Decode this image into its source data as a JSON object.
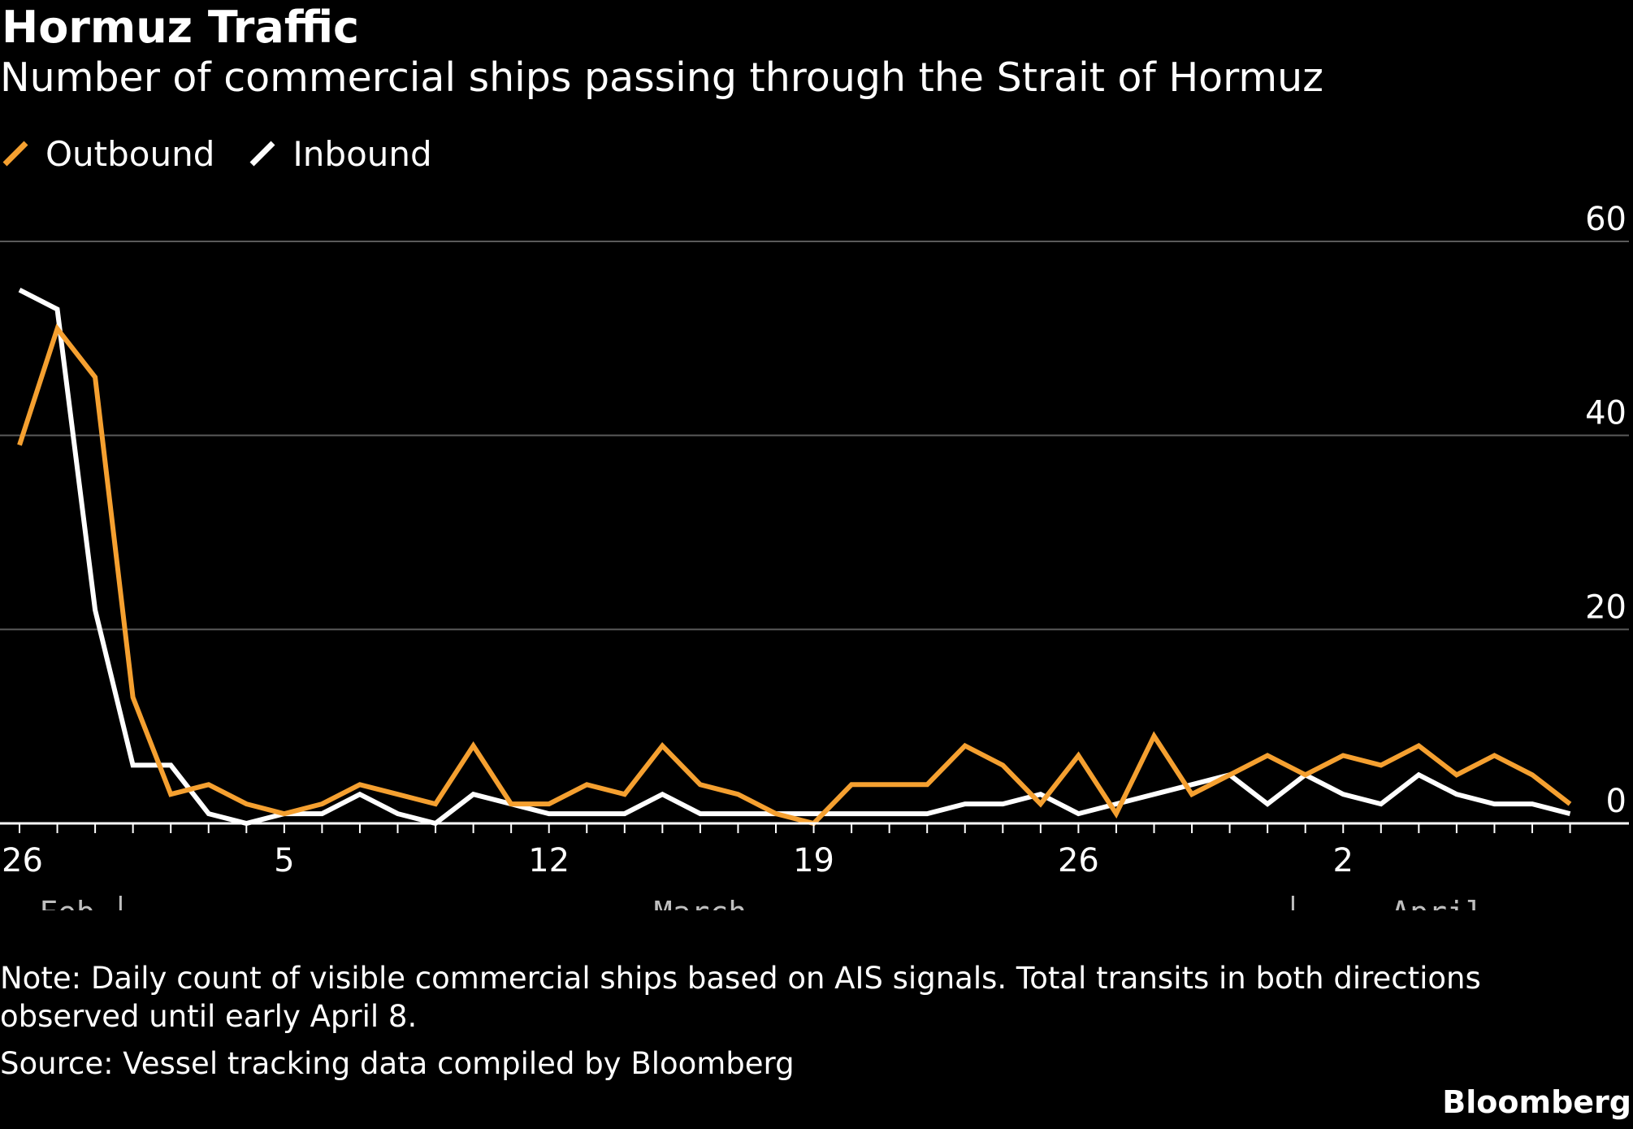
{
  "header": {
    "title": "Hormuz Traffic",
    "subtitle": "Number of commercial ships passing through the Strait of Hormuz"
  },
  "legend": {
    "items": [
      {
        "label": "Outbound",
        "color": "#f5a030",
        "icon": "orange-line-swatch-icon"
      },
      {
        "label": "Inbound",
        "color": "#ffffff",
        "icon": "white-line-swatch-icon"
      }
    ]
  },
  "footer": {
    "note": "Note: Daily count of visible commercial ships based on AIS signals. Total transits in both directions observed until early April 8.",
    "source": "Source: Vessel tracking data compiled by Bloomberg",
    "brand": "Bloomberg"
  },
  "chart_data": {
    "type": "line",
    "title": "Hormuz Traffic",
    "subtitle": "Number of commercial ships passing through the Strait of Hormuz",
    "xlabel": "",
    "ylabel": "",
    "x": [
      "Feb 26",
      "Feb 27",
      "Feb 28",
      "Mar 1",
      "Mar 2",
      "Mar 3",
      "Mar 4",
      "Mar 5",
      "Mar 6",
      "Mar 7",
      "Mar 8",
      "Mar 9",
      "Mar 10",
      "Mar 11",
      "Mar 12",
      "Mar 13",
      "Mar 14",
      "Mar 15",
      "Mar 16",
      "Mar 17",
      "Mar 18",
      "Mar 19",
      "Mar 20",
      "Mar 21",
      "Mar 22",
      "Mar 23",
      "Mar 24",
      "Mar 25",
      "Mar 26",
      "Mar 27",
      "Mar 28",
      "Mar 29",
      "Mar 30",
      "Mar 31",
      "Apr 1",
      "Apr 2",
      "Apr 3",
      "Apr 4",
      "Apr 5",
      "Apr 6",
      "Apr 7",
      "Apr 8"
    ],
    "series": [
      {
        "name": "Outbound",
        "color": "#f5a030",
        "values": [
          39,
          51,
          46,
          13,
          3,
          4,
          2,
          1,
          2,
          4,
          3,
          2,
          8,
          2,
          2,
          4,
          3,
          8,
          4,
          3,
          1,
          0,
          4,
          4,
          4,
          8,
          6,
          2,
          7,
          1,
          9,
          3,
          5,
          7,
          5,
          7,
          6,
          8,
          5,
          7,
          5,
          2
        ]
      },
      {
        "name": "Inbound",
        "color": "#ffffff",
        "values": [
          55,
          53,
          22,
          6,
          6,
          1,
          0,
          1,
          1,
          3,
          1,
          0,
          3,
          2,
          1,
          1,
          1,
          3,
          1,
          1,
          1,
          1,
          1,
          1,
          1,
          2,
          2,
          3,
          1,
          2,
          3,
          4,
          5,
          2,
          5,
          3,
          2,
          5,
          3,
          2,
          2,
          1
        ]
      }
    ],
    "ylim": [
      0,
      60
    ],
    "y_ticks": [
      0,
      20,
      40,
      60
    ],
    "y_tick_labels": [
      "0",
      "20",
      "40",
      "60"
    ],
    "x_tick_labels": [
      {
        "label": "26",
        "index": 0
      },
      {
        "label": "5",
        "index": 7
      },
      {
        "label": "12",
        "index": 14
      },
      {
        "label": "19",
        "index": 21
      },
      {
        "label": "26",
        "index": 28
      },
      {
        "label": "2",
        "index": 35
      }
    ],
    "months": [
      {
        "label": "Feb.",
        "center_index": 1.5
      },
      {
        "label": "March",
        "center_index": 18
      },
      {
        "label": "April",
        "center_index": 37.5
      }
    ],
    "month_boundaries": [
      3.0,
      34.0
    ],
    "y_axis_side": "right",
    "grid": true,
    "legend_position": "top-left",
    "background": "#000000"
  }
}
